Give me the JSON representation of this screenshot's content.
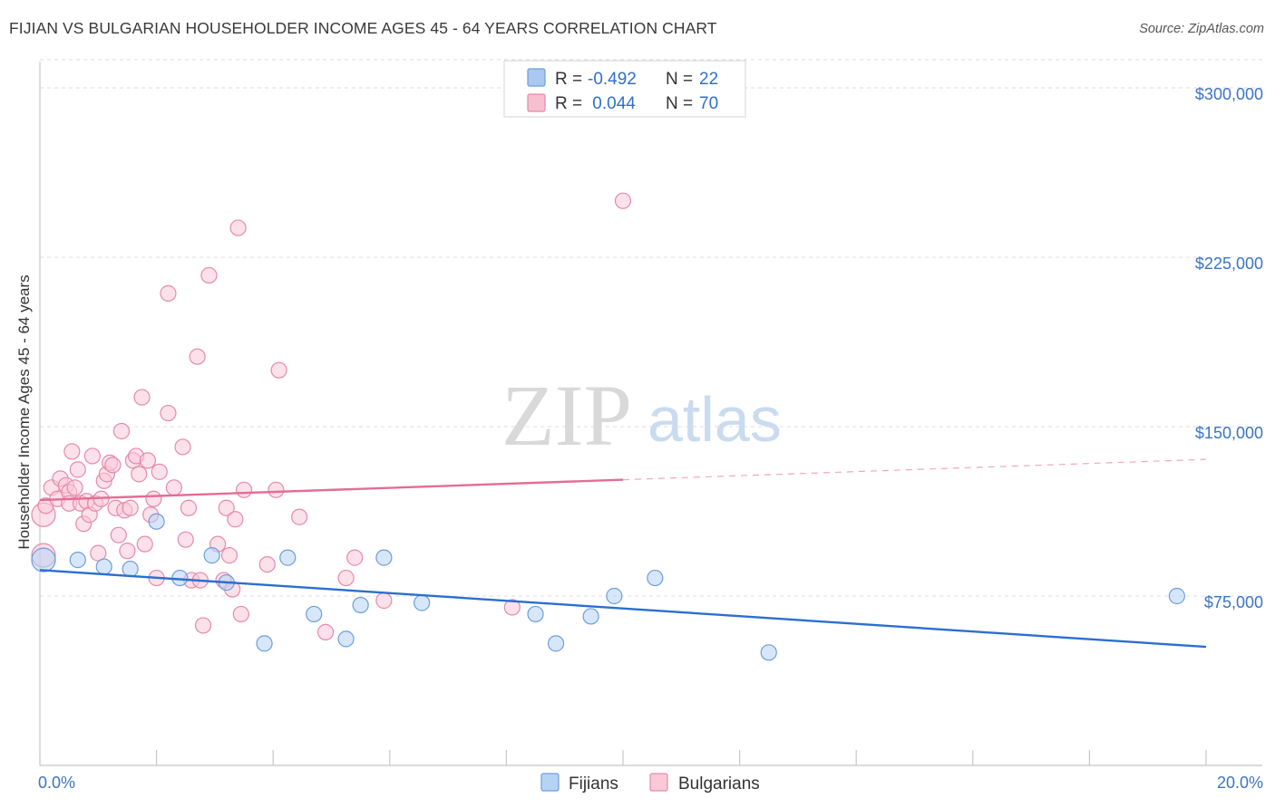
{
  "title": "FIJIAN VS BULGARIAN HOUSEHOLDER INCOME AGES 45 - 64 YEARS CORRELATION CHART",
  "source": "Source: ZipAtlas.com",
  "watermark": {
    "zip": "ZIP",
    "atlas": "atlas"
  },
  "legend_box": {
    "rows": [
      {
        "r_label": "R = ",
        "r_value": "-0.492",
        "n_label": "N = ",
        "n_value": "22",
        "color": "#a9c8f2",
        "stroke": "#6b9edd"
      },
      {
        "r_label": "R = ",
        "r_value": " 0.044",
        "n_label": "N = ",
        "n_value": "70",
        "color": "#f7bfd0",
        "stroke": "#e68aa8"
      }
    ]
  },
  "bottom_legend": [
    {
      "label": "Fijians",
      "color": "#b7d3f4",
      "stroke": "#6b9edd"
    },
    {
      "label": "Bulgarians",
      "color": "#f9c9d8",
      "stroke": "#e68aa8"
    }
  ],
  "chart_data": {
    "type": "scatter",
    "title": "FIJIAN VS BULGARIAN HOUSEHOLDER INCOME AGES 45 - 64 YEARS CORRELATION CHART",
    "xlabel": "",
    "ylabel": "Householder Income Ages 45 - 64 years",
    "xlim": [
      0,
      20
    ],
    "ylim": [
      0,
      312500
    ],
    "x_tick_labels": [
      "0.0%",
      "20.0%"
    ],
    "y_ticks": [
      75000,
      150000,
      225000,
      300000
    ],
    "y_tick_labels": [
      "$75,000",
      "$150,000",
      "$225,000",
      "$300,000"
    ],
    "grid": "horizontal dashed",
    "legend": "top-center",
    "series": [
      {
        "name": "Fijians",
        "color": "#6b9edd",
        "fill": "#b7d3f4",
        "r": -0.492,
        "n": 22,
        "points": [
          [
            0.0,
            91000
          ],
          [
            0.65,
            91000
          ],
          [
            1.1,
            88000
          ],
          [
            1.55,
            87000
          ],
          [
            2.0,
            108000
          ],
          [
            2.4,
            83000
          ],
          [
            2.95,
            93000
          ],
          [
            3.2,
            81000
          ],
          [
            3.85,
            54000
          ],
          [
            4.25,
            92000
          ],
          [
            4.7,
            67000
          ],
          [
            5.25,
            56000
          ],
          [
            5.5,
            71000
          ],
          [
            5.9,
            92000
          ],
          [
            6.55,
            72000
          ],
          [
            8.5,
            67000
          ],
          [
            8.85,
            54000
          ],
          [
            9.45,
            66000
          ],
          [
            9.85,
            75000
          ],
          [
            10.55,
            83000
          ],
          [
            12.5,
            50000
          ],
          [
            19.5,
            75000
          ]
        ],
        "trend": {
          "x": [
            0,
            20
          ],
          "y": [
            86500,
            52500
          ],
          "dashed_from": null
        }
      },
      {
        "name": "Bulgarians",
        "color": "#e68aa8",
        "fill": "#f9c9d8",
        "r": 0.044,
        "n": 70,
        "points": [
          [
            0.0,
            93000
          ],
          [
            0.0,
            111000
          ],
          [
            0.1,
            115000
          ],
          [
            0.2,
            123000
          ],
          [
            0.3,
            118000
          ],
          [
            0.35,
            127000
          ],
          [
            0.45,
            124000
          ],
          [
            0.5,
            121000
          ],
          [
            0.5,
            116000
          ],
          [
            0.55,
            139000
          ],
          [
            0.6,
            123000
          ],
          [
            0.65,
            131000
          ],
          [
            0.7,
            116000
          ],
          [
            0.75,
            107000
          ],
          [
            0.8,
            117000
          ],
          [
            0.85,
            111000
          ],
          [
            0.9,
            137000
          ],
          [
            0.95,
            116000
          ],
          [
            1.0,
            94000
          ],
          [
            1.05,
            118000
          ],
          [
            1.1,
            126000
          ],
          [
            1.15,
            129000
          ],
          [
            1.2,
            134000
          ],
          [
            1.25,
            133000
          ],
          [
            1.3,
            114000
          ],
          [
            1.35,
            102000
          ],
          [
            1.4,
            148000
          ],
          [
            1.45,
            113000
          ],
          [
            1.5,
            95000
          ],
          [
            1.55,
            114000
          ],
          [
            1.6,
            135000
          ],
          [
            1.65,
            137000
          ],
          [
            1.7,
            129000
          ],
          [
            1.75,
            163000
          ],
          [
            1.8,
            98000
          ],
          [
            1.85,
            135000
          ],
          [
            1.9,
            111000
          ],
          [
            1.95,
            118000
          ],
          [
            2.0,
            83000
          ],
          [
            2.05,
            130000
          ],
          [
            2.2,
            156000
          ],
          [
            2.2,
            209000
          ],
          [
            2.3,
            123000
          ],
          [
            2.45,
            141000
          ],
          [
            2.5,
            100000
          ],
          [
            2.55,
            114000
          ],
          [
            2.6,
            82000
          ],
          [
            2.7,
            181000
          ],
          [
            2.75,
            82000
          ],
          [
            2.8,
            62000
          ],
          [
            2.9,
            217000
          ],
          [
            3.05,
            98000
          ],
          [
            3.15,
            82000
          ],
          [
            3.2,
            114000
          ],
          [
            3.25,
            93000
          ],
          [
            3.3,
            78000
          ],
          [
            3.35,
            109000
          ],
          [
            3.4,
            238000
          ],
          [
            3.45,
            67000
          ],
          [
            3.5,
            122000
          ],
          [
            3.9,
            89000
          ],
          [
            4.05,
            122000
          ],
          [
            4.1,
            175000
          ],
          [
            4.45,
            110000
          ],
          [
            4.9,
            59000
          ],
          [
            5.25,
            83000
          ],
          [
            5.4,
            92000
          ],
          [
            5.9,
            73000
          ],
          [
            8.1,
            70000
          ],
          [
            10.0,
            250000
          ]
        ],
        "trend": {
          "x": [
            0,
            20
          ],
          "y": [
            117500,
            135500
          ],
          "dashed_from": 10
        }
      }
    ]
  }
}
